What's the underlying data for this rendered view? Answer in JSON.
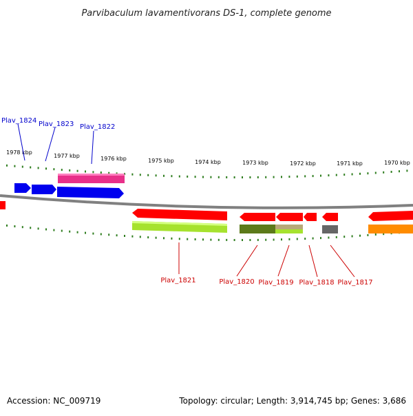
{
  "title": "Parvibaculum lavamentivorans DS-1, complete genome",
  "ruler": {
    "labels": [
      "1978 kbp",
      "1977 kbp",
      "1976 kbp",
      "1975 kbp",
      "1974 kbp",
      "1973 kbp",
      "1972 kbp",
      "1971 kbp",
      "1970 kbp"
    ]
  },
  "genes": {
    "forward": [
      "Plav_1824",
      "Plav_1823",
      "Plav_1822"
    ],
    "reverse": [
      "Plav_1821",
      "Plav_1820",
      "Plav_1819",
      "Plav_1818",
      "Plav_1817"
    ]
  },
  "footer": {
    "accession": "Accession: NC_009719",
    "summary": "Topology: circular; Length: 3,914,745 bp; Genes: 3,686"
  },
  "colors": {
    "forward_label": "#0000cc",
    "reverse_label": "#cc0000",
    "tick": "#2e7d1e",
    "backbone": "#808080",
    "cds_forward": "#0000ee",
    "cds_reverse": "#ff0000",
    "magenta_feature": "#e8308a",
    "lime_feature": "#a6e22e",
    "olive_feature": "#5c7a1a",
    "tan_feature": "#b8a878",
    "grey_feature": "#666666",
    "orange_feature": "#ff8c00"
  }
}
